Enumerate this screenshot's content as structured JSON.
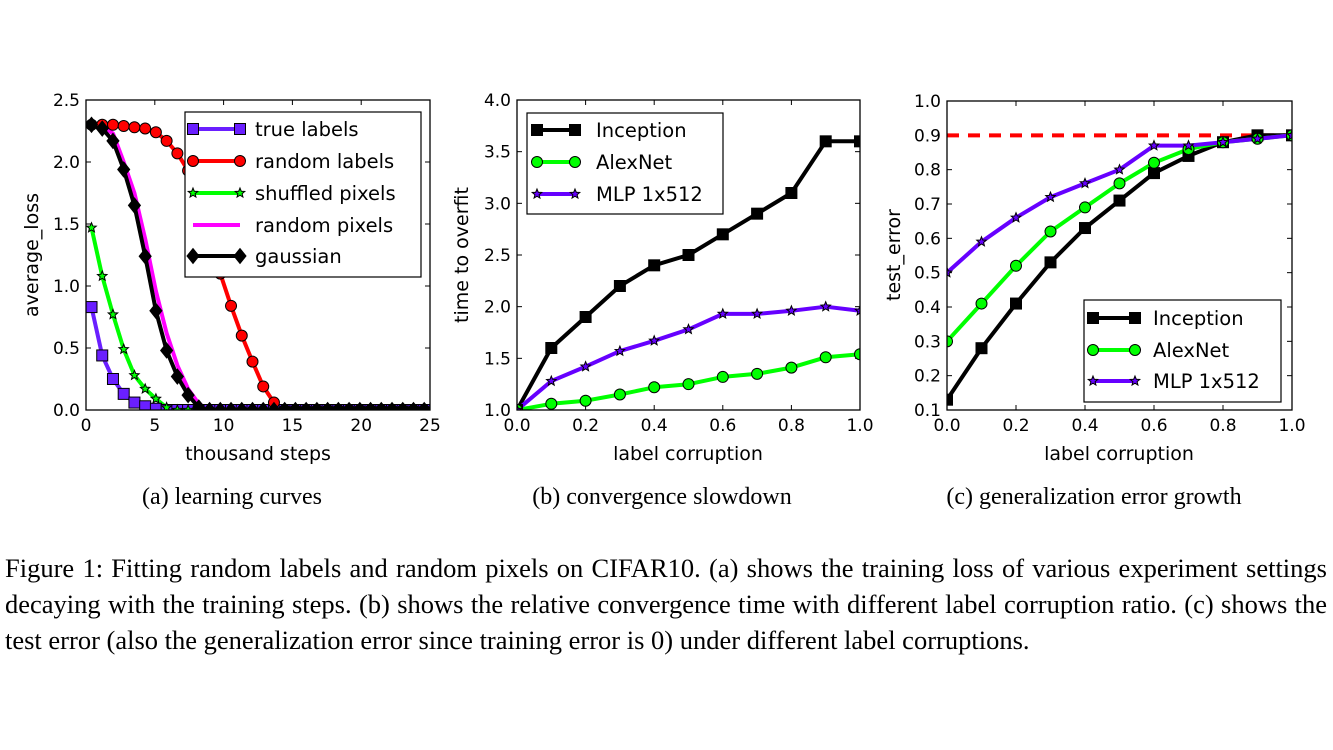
{
  "chart_data": [
    {
      "type": "line",
      "subcaption": "(a) learning curves",
      "xlabel": "thousand steps",
      "ylabel": "average_loss",
      "xlim": [
        0,
        25
      ],
      "ylim": [
        0,
        2.5
      ],
      "xticks": [
        "0",
        "5",
        "10",
        "15",
        "20",
        "25"
      ],
      "yticks": [
        "0.0",
        "0.5",
        "1.0",
        "1.5",
        "2.0",
        "2.5"
      ],
      "grid": false,
      "legend_position": "top-right",
      "x": [
        0.4,
        1.18,
        1.96,
        2.74,
        3.52,
        4.3,
        5.08,
        5.86,
        6.64,
        7.42,
        8.2,
        8.98,
        9.76,
        10.54,
        11.32,
        12.1,
        12.88,
        13.66,
        14.44,
        15.22,
        16.0,
        16.78,
        17.56,
        18.34,
        19.12,
        19.9,
        20.68,
        21.46,
        22.24,
        23.02,
        23.8,
        24.58
      ],
      "series": [
        {
          "name": "true labels",
          "color": "#6a1fff",
          "marker": "square",
          "values": [
            0.83,
            0.44,
            0.25,
            0.13,
            0.06,
            0.03,
            0.01,
            0,
            0,
            0,
            0,
            0,
            0,
            0,
            0,
            0,
            0,
            0,
            0,
            0,
            0,
            0,
            0,
            0,
            0,
            0,
            0,
            0,
            0,
            0,
            0,
            0
          ]
        },
        {
          "name": "random labels",
          "color": "#ff0000",
          "marker": "circle",
          "values": [
            2.3,
            2.3,
            2.3,
            2.29,
            2.28,
            2.27,
            2.24,
            2.17,
            2.07,
            1.93,
            1.73,
            1.45,
            1.1,
            0.84,
            0.6,
            0.39,
            0.19,
            0.06,
            0,
            0,
            0,
            0,
            0,
            0,
            0,
            0,
            0,
            0,
            0,
            0,
            0,
            0
          ]
        },
        {
          "name": "shuffled pixels",
          "color": "#00ff00",
          "marker": "star",
          "values": [
            1.47,
            1.08,
            0.77,
            0.49,
            0.28,
            0.17,
            0.09,
            0.02,
            0,
            0,
            0,
            0,
            0,
            0,
            0,
            0,
            0,
            0,
            0,
            0,
            0,
            0,
            0,
            0,
            0,
            0,
            0,
            0,
            0,
            0,
            0,
            0
          ]
        },
        {
          "name": "random pixels",
          "color": "#ff00ff",
          "marker": "none",
          "values": [
            2.3,
            2.29,
            2.23,
            2.0,
            1.75,
            1.38,
            0.96,
            0.62,
            0.36,
            0.17,
            0.05,
            0,
            0,
            0,
            0,
            0,
            0,
            0,
            0,
            0,
            0,
            0,
            0,
            0,
            0,
            0,
            0,
            0,
            0,
            0,
            0,
            0
          ]
        },
        {
          "name": "gaussian",
          "color": "#000000",
          "marker": "diamond",
          "values": [
            2.3,
            2.27,
            2.17,
            1.94,
            1.65,
            1.24,
            0.8,
            0.48,
            0.27,
            0.12,
            0.02,
            0,
            0,
            0,
            0,
            0,
            0,
            0,
            0,
            0,
            0,
            0,
            0,
            0,
            0,
            0,
            0,
            0,
            0,
            0,
            0,
            0
          ]
        }
      ]
    },
    {
      "type": "line",
      "subcaption": "(b) convergence slowdown",
      "xlabel": "label corruption",
      "ylabel": "time to overfit",
      "xlim": [
        0,
        1
      ],
      "ylim": [
        1,
        4
      ],
      "xticks": [
        "0.0",
        "0.2",
        "0.4",
        "0.6",
        "0.8",
        "1.0"
      ],
      "yticks": [
        "1.0",
        "1.5",
        "2.0",
        "2.5",
        "3.0",
        "3.5",
        "4.0"
      ],
      "grid": false,
      "legend_position": "top-left",
      "x": [
        0,
        0.1,
        0.2,
        0.3,
        0.4,
        0.5,
        0.6,
        0.7,
        0.8,
        0.9,
        1.0
      ],
      "series": [
        {
          "name": "Inception",
          "color": "#000000",
          "marker": "square",
          "values": [
            1.0,
            1.6,
            1.9,
            2.2,
            2.4,
            2.5,
            2.7,
            2.9,
            3.1,
            3.6,
            3.6
          ]
        },
        {
          "name": "AlexNet",
          "color": "#00ff00",
          "marker": "circle",
          "values": [
            1.0,
            1.06,
            1.09,
            1.15,
            1.22,
            1.25,
            1.32,
            1.35,
            1.41,
            1.51,
            1.54
          ]
        },
        {
          "name": "MLP 1x512",
          "color": "#6600ff",
          "marker": "star",
          "values": [
            1.0,
            1.28,
            1.42,
            1.57,
            1.67,
            1.78,
            1.93,
            1.93,
            1.96,
            2.0,
            1.96
          ]
        }
      ]
    },
    {
      "type": "line",
      "subcaption": "(c) generalization error growth",
      "xlabel": "label corruption",
      "ylabel": "test_error",
      "xlim": [
        0,
        1
      ],
      "ylim": [
        0.1,
        1.0
      ],
      "xticks": [
        "0.0",
        "0.2",
        "0.4",
        "0.6",
        "0.8",
        "1.0"
      ],
      "yticks": [
        "0.1",
        "0.2",
        "0.3",
        "0.4",
        "0.5",
        "0.6",
        "0.7",
        "0.8",
        "0.9",
        "1.0"
      ],
      "grid": false,
      "legend_position": "bottom-right",
      "reference_line": {
        "y": 0.9,
        "color": "#ff0000",
        "style": "dashed"
      },
      "x": [
        0,
        0.1,
        0.2,
        0.3,
        0.4,
        0.5,
        0.6,
        0.7,
        0.8,
        0.9,
        1.0
      ],
      "series": [
        {
          "name": "Inception",
          "color": "#000000",
          "marker": "square",
          "values": [
            0.13,
            0.28,
            0.41,
            0.53,
            0.63,
            0.71,
            0.79,
            0.84,
            0.88,
            0.9,
            0.9
          ]
        },
        {
          "name": "AlexNet",
          "color": "#00ff00",
          "marker": "circle",
          "values": [
            0.3,
            0.41,
            0.52,
            0.62,
            0.69,
            0.76,
            0.82,
            0.86,
            0.88,
            0.89,
            0.9
          ]
        },
        {
          "name": "MLP 1x512",
          "color": "#6600ff",
          "marker": "star",
          "values": [
            0.5,
            0.59,
            0.66,
            0.72,
            0.76,
            0.8,
            0.87,
            0.87,
            0.88,
            0.89,
            0.9
          ]
        }
      ]
    }
  ],
  "caption": "Figure 1: Fitting random labels and random pixels on CIFAR10. (a) shows the training loss of various experiment settings decaying with the training steps. (b) shows the relative convergence time with different label corruption ratio. (c) shows the test error (also the generalization error since training error is 0) under different label corruptions."
}
